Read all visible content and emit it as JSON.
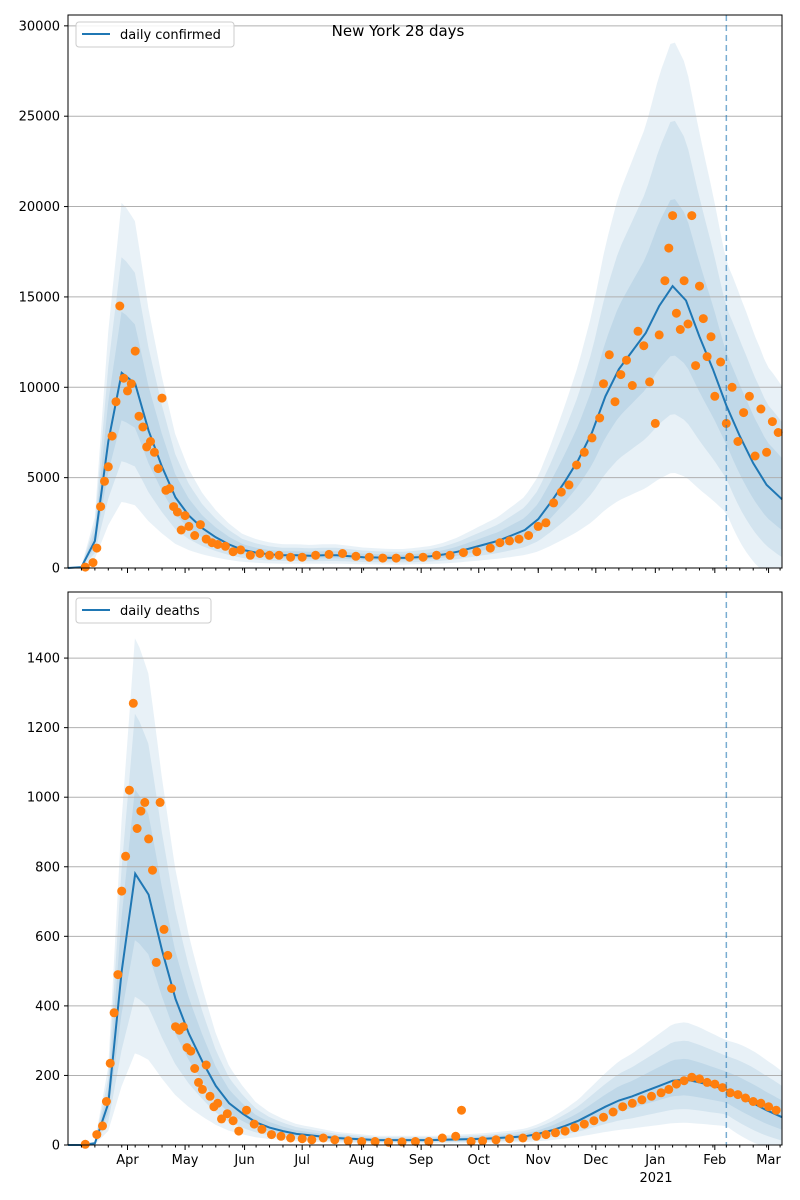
{
  "figure": {
    "title": "New York 28 days"
  },
  "colors": {
    "model_line": "#1f77b4",
    "observed_points": "#ff7f0e",
    "band": "#1f77b4",
    "grid": "#b0b0b0",
    "forecast_line": "#1f77b4"
  },
  "chart_data": [
    {
      "type": "line",
      "title": "New York 28 days",
      "xlabel": "",
      "ylabel": "",
      "ylim": [
        0,
        30600
      ],
      "yticks": [
        0,
        5000,
        10000,
        15000,
        20000,
        25000,
        30000
      ],
      "xlim": [
        "2020-03-01",
        "2021-03-08"
      ],
      "grid": "horizontal",
      "legend_position": "top-left",
      "forecast_start": "2021-02-07",
      "series": [
        {
          "name": "daily confirmed",
          "kind": "model",
          "x": [
            "2020-03-01",
            "2020-03-08",
            "2020-03-15",
            "2020-03-22",
            "2020-03-29",
            "2020-04-05",
            "2020-04-12",
            "2020-04-19",
            "2020-04-26",
            "2020-05-03",
            "2020-05-10",
            "2020-05-17",
            "2020-05-24",
            "2020-05-31",
            "2020-06-07",
            "2020-06-14",
            "2020-06-21",
            "2020-06-28",
            "2020-07-05",
            "2020-07-12",
            "2020-07-19",
            "2020-07-26",
            "2020-08-02",
            "2020-08-09",
            "2020-08-16",
            "2020-08-23",
            "2020-08-30",
            "2020-09-06",
            "2020-09-13",
            "2020-09-20",
            "2020-09-27",
            "2020-10-04",
            "2020-10-11",
            "2020-10-18",
            "2020-10-25",
            "2020-11-01",
            "2020-11-08",
            "2020-11-15",
            "2020-11-22",
            "2020-11-29",
            "2020-12-06",
            "2020-12-13",
            "2020-12-20",
            "2020-12-27",
            "2021-01-03",
            "2021-01-10",
            "2021-01-17",
            "2021-01-24",
            "2021-01-31",
            "2021-02-07",
            "2021-02-14",
            "2021-02-21",
            "2021-02-28",
            "2021-03-08"
          ],
          "y": [
            0,
            50,
            1500,
            7000,
            10800,
            10200,
            7600,
            5600,
            3900,
            2900,
            2200,
            1700,
            1300,
            1000,
            850,
            750,
            700,
            700,
            680,
            700,
            700,
            650,
            600,
            580,
            560,
            560,
            600,
            650,
            750,
            900,
            1100,
            1300,
            1500,
            1800,
            2100,
            2700,
            3700,
            4800,
            6000,
            7500,
            9500,
            11000,
            12000,
            13000,
            14500,
            15600,
            14800,
            12800,
            11000,
            9000,
            7300,
            5800,
            4600,
            3800
          ]
        },
        {
          "name": "observed",
          "kind": "points",
          "x": [
            "2020-03-10",
            "2020-03-14",
            "2020-03-16",
            "2020-03-18",
            "2020-03-20",
            "2020-03-22",
            "2020-03-24",
            "2020-03-26",
            "2020-03-28",
            "2020-03-30",
            "2020-04-01",
            "2020-04-03",
            "2020-04-05",
            "2020-04-07",
            "2020-04-09",
            "2020-04-11",
            "2020-04-13",
            "2020-04-15",
            "2020-04-17",
            "2020-04-19",
            "2020-04-21",
            "2020-04-23",
            "2020-04-25",
            "2020-04-27",
            "2020-04-29",
            "2020-05-01",
            "2020-05-03",
            "2020-05-06",
            "2020-05-09",
            "2020-05-12",
            "2020-05-15",
            "2020-05-18",
            "2020-05-22",
            "2020-05-26",
            "2020-05-30",
            "2020-06-04",
            "2020-06-09",
            "2020-06-14",
            "2020-06-19",
            "2020-06-25",
            "2020-07-01",
            "2020-07-08",
            "2020-07-15",
            "2020-07-22",
            "2020-07-29",
            "2020-08-05",
            "2020-08-12",
            "2020-08-19",
            "2020-08-26",
            "2020-09-02",
            "2020-09-09",
            "2020-09-16",
            "2020-09-23",
            "2020-09-30",
            "2020-10-07",
            "2020-10-12",
            "2020-10-17",
            "2020-10-22",
            "2020-10-27",
            "2020-11-01",
            "2020-11-05",
            "2020-11-09",
            "2020-11-13",
            "2020-11-17",
            "2020-11-21",
            "2020-11-25",
            "2020-11-29",
            "2020-12-03",
            "2020-12-05",
            "2020-12-08",
            "2020-12-11",
            "2020-12-14",
            "2020-12-17",
            "2020-12-20",
            "2020-12-23",
            "2020-12-26",
            "2020-12-29",
            "2021-01-01",
            "2021-01-03",
            "2021-01-06",
            "2021-01-08",
            "2021-01-10",
            "2021-01-12",
            "2021-01-14",
            "2021-01-16",
            "2021-01-18",
            "2021-01-20",
            "2021-01-22",
            "2021-01-24",
            "2021-01-26",
            "2021-01-28",
            "2021-01-30",
            "2021-02-01",
            "2021-02-04",
            "2021-02-07",
            "2021-02-10",
            "2021-02-13",
            "2021-02-16",
            "2021-02-19",
            "2021-02-22",
            "2021-02-25",
            "2021-02-28",
            "2021-03-03",
            "2021-03-06"
          ],
          "y": [
            50,
            300,
            1100,
            3400,
            4800,
            5600,
            7300,
            9200,
            14500,
            10500,
            9800,
            10200,
            12000,
            8400,
            7800,
            6700,
            7000,
            6400,
            5500,
            9400,
            4300,
            4400,
            3400,
            3100,
            2100,
            2900,
            2300,
            1800,
            2400,
            1600,
            1400,
            1300,
            1200,
            900,
            1000,
            700,
            800,
            700,
            700,
            600,
            600,
            700,
            750,
            800,
            650,
            600,
            550,
            550,
            600,
            600,
            700,
            700,
            850,
            900,
            1100,
            1400,
            1500,
            1600,
            1800,
            2300,
            2500,
            3600,
            4200,
            4600,
            5700,
            6400,
            7200,
            8300,
            10200,
            11800,
            9200,
            10700,
            11500,
            10100,
            13100,
            12300,
            10300,
            8000,
            12900,
            15900,
            17700,
            19500,
            14100,
            13200,
            15900,
            13500,
            19500,
            11200,
            15600,
            13800,
            11700,
            12800,
            9500,
            11400,
            8000,
            10000,
            7000,
            8600,
            9500,
            6200,
            8800,
            6400,
            8100,
            7500
          ]
        }
      ]
    },
    {
      "type": "line",
      "title": "",
      "xlabel": "",
      "ylabel": "",
      "ylim": [
        0,
        1590
      ],
      "yticks": [
        0,
        200,
        400,
        600,
        800,
        1000,
        1200,
        1400
      ],
      "xlim": [
        "2020-03-01",
        "2021-03-08"
      ],
      "xtick_labels": [
        "Apr",
        "May",
        "Jun",
        "Jul",
        "Aug",
        "Sep",
        "Oct",
        "Nov",
        "Dec",
        "Jan",
        "Feb",
        "Mar"
      ],
      "xtick_dates": [
        "2020-04-01",
        "2020-05-01",
        "2020-06-01",
        "2020-07-01",
        "2020-08-01",
        "2020-09-01",
        "2020-10-01",
        "2020-11-01",
        "2020-12-01",
        "2021-01-01",
        "2021-02-01",
        "2021-03-01"
      ],
      "year_label": "2021",
      "grid": "horizontal",
      "legend_position": "top-left",
      "forecast_start": "2021-02-07",
      "series": [
        {
          "name": "daily deaths",
          "kind": "model",
          "x": [
            "2020-03-01",
            "2020-03-08",
            "2020-03-15",
            "2020-03-22",
            "2020-03-29",
            "2020-04-05",
            "2020-04-12",
            "2020-04-19",
            "2020-04-26",
            "2020-05-03",
            "2020-05-10",
            "2020-05-17",
            "2020-05-24",
            "2020-05-31",
            "2020-06-07",
            "2020-06-14",
            "2020-06-21",
            "2020-06-28",
            "2020-07-05",
            "2020-07-12",
            "2020-07-19",
            "2020-07-26",
            "2020-08-02",
            "2020-08-09",
            "2020-08-16",
            "2020-08-23",
            "2020-08-30",
            "2020-09-06",
            "2020-09-13",
            "2020-09-20",
            "2020-09-27",
            "2020-10-04",
            "2020-10-11",
            "2020-10-18",
            "2020-10-25",
            "2020-11-01",
            "2020-11-08",
            "2020-11-15",
            "2020-11-22",
            "2020-11-29",
            "2020-12-06",
            "2020-12-13",
            "2020-12-20",
            "2020-12-27",
            "2021-01-03",
            "2021-01-10",
            "2021-01-17",
            "2021-01-24",
            "2021-01-31",
            "2021-02-07",
            "2021-02-14",
            "2021-02-21",
            "2021-02-28",
            "2021-03-08"
          ],
          "y": [
            0,
            0,
            5,
            120,
            500,
            780,
            720,
            560,
            420,
            320,
            240,
            170,
            120,
            90,
            65,
            50,
            40,
            32,
            28,
            24,
            20,
            18,
            16,
            14,
            14,
            14,
            14,
            14,
            15,
            16,
            17,
            18,
            20,
            22,
            25,
            32,
            42,
            55,
            70,
            90,
            110,
            128,
            140,
            155,
            170,
            185,
            188,
            180,
            170,
            160,
            140,
            120,
            100,
            80
          ]
        },
        {
          "name": "observed",
          "kind": "points",
          "x": [
            "2020-03-10",
            "2020-03-16",
            "2020-03-19",
            "2020-03-21",
            "2020-03-23",
            "2020-03-25",
            "2020-03-27",
            "2020-03-29",
            "2020-03-31",
            "2020-04-02",
            "2020-04-04",
            "2020-04-06",
            "2020-04-08",
            "2020-04-10",
            "2020-04-12",
            "2020-04-14",
            "2020-04-16",
            "2020-04-18",
            "2020-04-20",
            "2020-04-22",
            "2020-04-24",
            "2020-04-26",
            "2020-04-28",
            "2020-04-30",
            "2020-05-02",
            "2020-05-04",
            "2020-05-06",
            "2020-05-08",
            "2020-05-10",
            "2020-05-12",
            "2020-05-14",
            "2020-05-16",
            "2020-05-18",
            "2020-05-20",
            "2020-05-23",
            "2020-05-26",
            "2020-05-29",
            "2020-06-02",
            "2020-06-06",
            "2020-06-10",
            "2020-06-15",
            "2020-06-20",
            "2020-06-25",
            "2020-07-01",
            "2020-07-06",
            "2020-07-12",
            "2020-07-18",
            "2020-07-25",
            "2020-08-01",
            "2020-08-08",
            "2020-08-15",
            "2020-08-22",
            "2020-08-29",
            "2020-09-05",
            "2020-09-12",
            "2020-09-19",
            "2020-09-22",
            "2020-09-27",
            "2020-10-03",
            "2020-10-10",
            "2020-10-17",
            "2020-10-24",
            "2020-10-31",
            "2020-11-05",
            "2020-11-10",
            "2020-11-15",
            "2020-11-20",
            "2020-11-25",
            "2020-11-30",
            "2020-12-05",
            "2020-12-10",
            "2020-12-15",
            "2020-12-20",
            "2020-12-25",
            "2020-12-30",
            "2021-01-04",
            "2021-01-08",
            "2021-01-12",
            "2021-01-16",
            "2021-01-20",
            "2021-01-24",
            "2021-01-28",
            "2021-02-01",
            "2021-02-05",
            "2021-02-09",
            "2021-02-13",
            "2021-02-17",
            "2021-02-21",
            "2021-02-25",
            "2021-03-01",
            "2021-03-05"
          ],
          "y": [
            2,
            30,
            55,
            125,
            235,
            380,
            490,
            730,
            830,
            1020,
            1270,
            910,
            960,
            985,
            880,
            790,
            525,
            985,
            620,
            545,
            450,
            340,
            330,
            340,
            280,
            270,
            220,
            180,
            160,
            230,
            140,
            110,
            120,
            75,
            90,
            70,
            40,
            100,
            60,
            45,
            30,
            25,
            20,
            18,
            15,
            20,
            15,
            12,
            10,
            10,
            8,
            9,
            10,
            10,
            20,
            25,
            100,
            10,
            12,
            15,
            18,
            20,
            25,
            30,
            35,
            40,
            50,
            60,
            70,
            80,
            95,
            110,
            120,
            130,
            140,
            150,
            160,
            175,
            185,
            195,
            190,
            180,
            175,
            165,
            150,
            145,
            135,
            125,
            120,
            110,
            100
          ]
        }
      ]
    }
  ]
}
